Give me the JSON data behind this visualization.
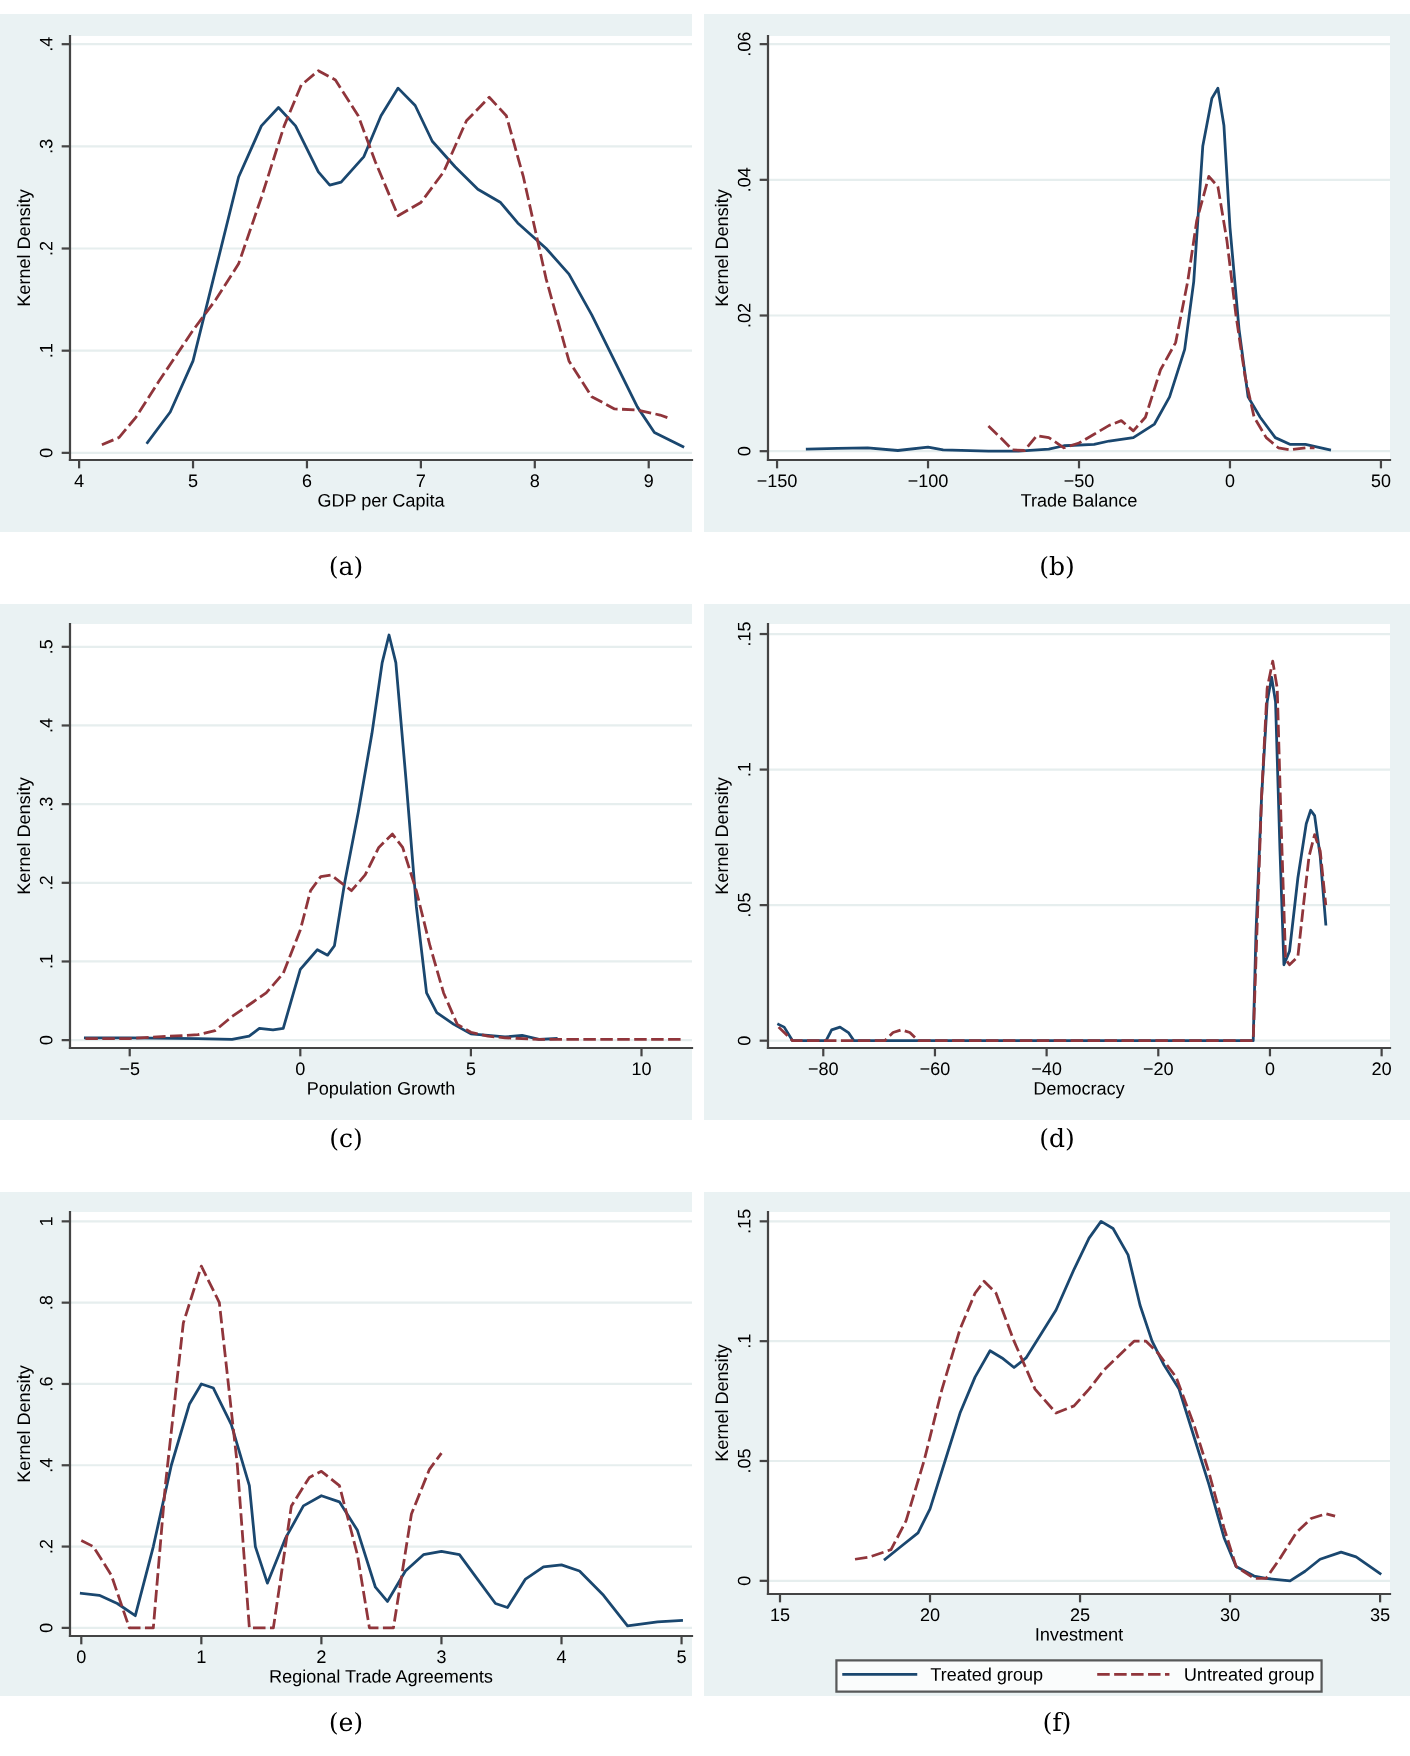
{
  "chart_data": [
    {
      "type": "line",
      "xlabel": "GDP per Capita",
      "ylabel": "Kernel Density",
      "annotations": [
        "(a)"
      ],
      "xlim": [
        3.92,
        9.38
      ],
      "ylim": [
        -0.007,
        0.408
      ],
      "xticks": [
        4,
        5,
        6,
        7,
        8,
        9
      ],
      "yticks": [
        0,
        {
          "value": 0.1,
          "label": ".1"
        },
        {
          "value": 0.2,
          "label": ".2"
        },
        {
          "value": 0.3,
          "label": ".3"
        },
        {
          "value": 0.4,
          "label": ".4"
        }
      ],
      "grid": "y",
      "series": [
        {
          "color": "#1a476f",
          "line_style": "solid",
          "x": [
            4.6,
            4.8,
            5.0,
            5.2,
            5.4,
            5.6,
            5.75,
            5.9,
            6.1,
            6.2,
            6.3,
            6.5,
            6.65,
            6.8,
            6.95,
            7.1,
            7.3,
            7.5,
            7.7,
            7.85,
            8.1,
            8.3,
            8.5,
            8.7,
            8.9,
            9.05,
            9.3
          ],
          "values": [
            0.01,
            0.04,
            0.09,
            0.18,
            0.27,
            0.32,
            0.338,
            0.32,
            0.275,
            0.262,
            0.265,
            0.29,
            0.33,
            0.357,
            0.34,
            0.305,
            0.28,
            0.258,
            0.245,
            0.225,
            0.2,
            0.175,
            0.135,
            0.09,
            0.045,
            0.02,
            0.006
          ]
        },
        {
          "color": "#90353b",
          "line_style": "dashed",
          "x": [
            4.2,
            4.35,
            4.5,
            4.7,
            5.0,
            5.2,
            5.4,
            5.6,
            5.8,
            5.95,
            6.1,
            6.25,
            6.45,
            6.6,
            6.8,
            7.0,
            7.2,
            7.4,
            7.6,
            7.75,
            7.9,
            8.1,
            8.3,
            8.5,
            8.7,
            8.9,
            9.1,
            9.2
          ],
          "values": [
            0.008,
            0.015,
            0.035,
            0.07,
            0.12,
            0.15,
            0.185,
            0.25,
            0.32,
            0.36,
            0.374,
            0.365,
            0.33,
            0.285,
            0.232,
            0.245,
            0.275,
            0.325,
            0.348,
            0.33,
            0.27,
            0.17,
            0.09,
            0.055,
            0.043,
            0.042,
            0.037,
            0.033
          ]
        }
      ]
    },
    {
      "type": "line",
      "xlabel": "Trade Balance",
      "ylabel": "Kernel Density",
      "annotations": [
        "(b)"
      ],
      "xlim": [
        -153,
        53
      ],
      "ylim": [
        -0.0013,
        0.0612
      ],
      "xticks": [
        {
          "value": -150,
          "label": "−150"
        },
        {
          "value": -100,
          "label": "−100"
        },
        {
          "value": -50,
          "label": "−50"
        },
        0,
        50
      ],
      "yticks": [
        0,
        {
          "value": 0.02,
          "label": ".02"
        },
        {
          "value": 0.04,
          "label": ".04"
        },
        {
          "value": 0.06,
          "label": ".06"
        }
      ],
      "grid": "y",
      "series": [
        {
          "color": "#1a476f",
          "line_style": "solid",
          "x": [
            -140,
            -130,
            -120,
            -110,
            -100,
            -95,
            -80,
            -70,
            -60,
            -55,
            -45,
            -40,
            -32,
            -25,
            -20,
            -15,
            -12,
            -9,
            -6,
            -4,
            -2,
            0,
            3,
            6,
            10,
            15,
            20,
            25,
            33
          ],
          "values": [
            0.0003,
            0.0004,
            0.0005,
            0.0001,
            0.0006,
            0.0002,
            0.0,
            0.0,
            0.0003,
            0.0008,
            0.001,
            0.0015,
            0.002,
            0.004,
            0.008,
            0.015,
            0.025,
            0.045,
            0.052,
            0.0535,
            0.048,
            0.033,
            0.018,
            0.008,
            0.005,
            0.002,
            0.001,
            0.001,
            0.0002
          ]
        },
        {
          "color": "#90353b",
          "line_style": "dashed",
          "x": [
            -80,
            -76,
            -72,
            -68,
            -64,
            -60,
            -55,
            -50,
            -45,
            -40,
            -36,
            -32,
            -28,
            -23,
            -18,
            -14,
            -11,
            -7,
            -4,
            -1,
            2,
            5,
            8,
            12,
            16,
            20,
            25,
            28
          ],
          "values": [
            0.0037,
            0.002,
            0.0002,
            0.0001,
            0.0023,
            0.002,
            0.0005,
            0.0012,
            0.0025,
            0.0038,
            0.0045,
            0.003,
            0.005,
            0.012,
            0.016,
            0.025,
            0.034,
            0.0405,
            0.039,
            0.031,
            0.02,
            0.011,
            0.005,
            0.002,
            0.0005,
            0.0002,
            0.0005,
            0.0005
          ]
        }
      ]
    },
    {
      "type": "line",
      "xlabel": "Population Growth",
      "ylabel": "Kernel Density",
      "annotations": [
        "(c)"
      ],
      "xlim": [
        -6.75,
        11.48
      ],
      "ylim": [
        -0.01,
        0.529
      ],
      "xticks": [
        {
          "value": -5,
          "label": "−5"
        },
        0,
        5,
        10
      ],
      "yticks": [
        0,
        {
          "value": 0.1,
          "label": ".1"
        },
        {
          "value": 0.2,
          "label": ".2"
        },
        {
          "value": 0.3,
          "label": ".3"
        },
        {
          "value": 0.4,
          "label": ".4"
        },
        {
          "value": 0.5,
          "label": ".5"
        }
      ],
      "grid": "y",
      "series": [
        {
          "color": "#1a476f",
          "line_style": "solid",
          "x": [
            -6.3,
            -5,
            -3,
            -2,
            -1.5,
            -1.2,
            -0.8,
            -0.5,
            -0.2,
            0,
            0.2,
            0.5,
            0.8,
            1.0,
            1.3,
            1.7,
            2.1,
            2.4,
            2.6,
            2.8,
            3.1,
            3.4,
            3.7,
            4.0,
            4.5,
            5,
            6,
            6.5,
            7,
            7.5
          ],
          "values": [
            0.003,
            0.003,
            0.002,
            0.001,
            0.005,
            0.015,
            0.013,
            0.015,
            0.06,
            0.09,
            0.1,
            0.115,
            0.108,
            0.12,
            0.2,
            0.29,
            0.39,
            0.48,
            0.515,
            0.48,
            0.33,
            0.17,
            0.06,
            0.035,
            0.02,
            0.008,
            0.004,
            0.006,
            0.001,
            0.002
          ]
        },
        {
          "color": "#90353b",
          "line_style": "dashed",
          "x": [
            -6.3,
            -5,
            -3,
            -2.5,
            -2,
            -1.5,
            -1,
            -0.5,
            0,
            0.3,
            0.6,
            0.9,
            1.2,
            1.5,
            1.9,
            2.3,
            2.7,
            3.0,
            3.4,
            3.8,
            4.2,
            4.6,
            5,
            5.5,
            6,
            7,
            8,
            9,
            11.24
          ],
          "values": [
            0.002,
            0.002,
            0.007,
            0.012,
            0.03,
            0.045,
            0.06,
            0.085,
            0.14,
            0.19,
            0.208,
            0.21,
            0.2,
            0.19,
            0.21,
            0.245,
            0.262,
            0.245,
            0.19,
            0.12,
            0.06,
            0.02,
            0.01,
            0.005,
            0.003,
            0.001,
            0.001,
            0.001,
            0.001
          ]
        }
      ]
    },
    {
      "type": "line",
      "xlabel": "Democracy",
      "ylabel": "Kernel Density",
      "annotations": [
        "(d)"
      ],
      "xlim": [
        -89.9,
        21.5
      ],
      "ylim": [
        -0.0027,
        0.1537
      ],
      "xticks": [
        {
          "value": -80,
          "label": "−80"
        },
        {
          "value": -60,
          "label": "−60"
        },
        {
          "value": -40,
          "label": "−40"
        },
        {
          "value": -20,
          "label": "−20"
        },
        0,
        20
      ],
      "yticks": [
        0,
        {
          "value": 0.05,
          "label": ".05"
        },
        {
          "value": 0.1,
          "label": ".1"
        },
        {
          "value": 0.15,
          "label": ".15"
        }
      ],
      "grid": "y",
      "series": [
        {
          "color": "#1a476f",
          "line_style": "solid",
          "x": [
            -88,
            -87,
            -85.5,
            -80,
            -79.5,
            -78.5,
            -77,
            -75.5,
            -74.5,
            -60,
            -40,
            -20,
            -3,
            -2.5,
            -1.5,
            -0.5,
            0.3,
            1.0,
            1.8,
            2.5,
            3.5,
            5,
            6.5,
            7.3,
            8,
            9,
            10
          ],
          "values": [
            0.006,
            0.005,
            0,
            0,
            0,
            0.004,
            0.005,
            0.003,
            0,
            0,
            0,
            0,
            0,
            0.04,
            0.09,
            0.125,
            0.134,
            0.125,
            0.07,
            0.028,
            0.033,
            0.06,
            0.08,
            0.085,
            0.083,
            0.068,
            0.043
          ]
        },
        {
          "color": "#90353b",
          "line_style": "dashed",
          "x": [
            -88,
            -87,
            -85.5,
            -69,
            -67.5,
            -66,
            -64.5,
            -63,
            -40,
            -3,
            -2.5,
            -1.5,
            -0.5,
            0.5,
            1.3,
            2,
            2.8,
            3.5,
            5,
            6,
            7,
            8,
            9,
            10
          ],
          "values": [
            0.005,
            0.003,
            0,
            0,
            0.003,
            0.004,
            0.003,
            0,
            0,
            0,
            0.03,
            0.09,
            0.13,
            0.14,
            0.13,
            0.08,
            0.03,
            0.028,
            0.031,
            0.05,
            0.068,
            0.076,
            0.07,
            0.05
          ]
        }
      ]
    },
    {
      "type": "line",
      "xlabel": "Regional Trade Agreements",
      "ylabel": "Kernel Density",
      "annotations": [
        "(e)"
      ],
      "xlim": [
        -0.094,
        5.087
      ],
      "ylim": [
        -0.02,
        1.023
      ],
      "xticks": [
        0,
        1,
        2,
        3,
        4,
        5
      ],
      "yticks": [
        0,
        {
          "value": 0.2,
          "label": ".2"
        },
        {
          "value": 0.4,
          "label": ".4"
        },
        {
          "value": 0.6,
          "label": ".6"
        },
        {
          "value": 0.8,
          "label": ".8"
        },
        1
      ],
      "grid": "y",
      "series": [
        {
          "color": "#1a476f",
          "line_style": "solid",
          "x": [
            0,
            0.15,
            0.3,
            0.45,
            0.6,
            0.75,
            0.9,
            1.0,
            1.1,
            1.25,
            1.4,
            1.45,
            1.55,
            1.7,
            1.85,
            2.0,
            2.15,
            2.3,
            2.45,
            2.55,
            2.7,
            2.85,
            3.0,
            3.15,
            3.3,
            3.45,
            3.55,
            3.7,
            3.85,
            4.0,
            4.15,
            4.35,
            4.55,
            4.8,
            5.0
          ],
          "values": [
            0.085,
            0.08,
            0.06,
            0.03,
            0.2,
            0.4,
            0.55,
            0.6,
            0.59,
            0.5,
            0.35,
            0.2,
            0.11,
            0.22,
            0.3,
            0.325,
            0.31,
            0.24,
            0.1,
            0.065,
            0.14,
            0.18,
            0.188,
            0.18,
            0.12,
            0.06,
            0.05,
            0.12,
            0.15,
            0.155,
            0.14,
            0.08,
            0.005,
            0.015,
            0.018
          ]
        },
        {
          "color": "#90353b",
          "line_style": "dashed",
          "x": [
            0,
            0.1,
            0.25,
            0.4,
            0.6,
            0.7,
            0.85,
            1.0,
            1.15,
            1.3,
            1.4,
            1.6,
            1.75,
            1.9,
            2.0,
            2.15,
            2.3,
            2.4,
            2.6,
            2.75,
            2.9,
            3.0
          ],
          "values": [
            0.215,
            0.2,
            0.13,
            0.0,
            0.0,
            0.35,
            0.75,
            0.89,
            0.8,
            0.4,
            0.0,
            0.0,
            0.3,
            0.37,
            0.385,
            0.35,
            0.18,
            0.0,
            0.0,
            0.28,
            0.39,
            0.43
          ]
        }
      ]
    },
    {
      "type": "line",
      "xlabel": "Investment",
      "ylabel": "Kernel Density",
      "annotations": [
        "(f)"
      ],
      "xlim": [
        14.6,
        35.33
      ],
      "ylim": [
        -0.0055,
        0.1539
      ],
      "xticks": [
        15,
        20,
        25,
        30,
        35
      ],
      "yticks": [
        0,
        {
          "value": 0.05,
          "label": ".05"
        },
        {
          "value": 0.1,
          "label": ".1"
        },
        {
          "value": 0.15,
          "label": ".15"
        }
      ],
      "grid": "y",
      "legend": "bottom",
      "series": [
        {
          "name": "Treated group",
          "color": "#1a476f",
          "line_style": "solid",
          "x": [
            18.5,
            19,
            19.6,
            20,
            20.5,
            21,
            21.5,
            22,
            22.4,
            22.8,
            23.2,
            23.7,
            24.2,
            24.8,
            25.3,
            25.7,
            26.1,
            26.6,
            27,
            27.4,
            27.8,
            28.3,
            28.8,
            29.3,
            29.8,
            30.2,
            30.8,
            31.2,
            32,
            32.5,
            33,
            33.7,
            34.2,
            35
          ],
          "values": [
            0.009,
            0.014,
            0.02,
            0.03,
            0.05,
            0.07,
            0.085,
            0.096,
            0.093,
            0.089,
            0.093,
            0.103,
            0.113,
            0.13,
            0.143,
            0.15,
            0.147,
            0.136,
            0.115,
            0.1,
            0.09,
            0.08,
            0.06,
            0.04,
            0.018,
            0.006,
            0.002,
            0.001,
            0.0,
            0.004,
            0.009,
            0.012,
            0.01,
            0.003
          ]
        },
        {
          "name": "Untreated group",
          "color": "#90353b",
          "line_style": "dashed",
          "x": [
            17.5,
            18,
            18.7,
            19.2,
            19.8,
            20.4,
            21,
            21.5,
            21.8,
            22.2,
            22.8,
            23.5,
            24.2,
            24.8,
            25.3,
            25.8,
            26.3,
            26.8,
            27.2,
            27.6,
            28.2,
            28.8,
            29.3,
            29.8,
            30.2,
            30.8,
            31.2,
            31.7,
            32.2,
            32.7,
            33.2,
            33.5
          ],
          "values": [
            0.009,
            0.01,
            0.013,
            0.025,
            0.05,
            0.08,
            0.105,
            0.12,
            0.125,
            0.12,
            0.1,
            0.08,
            0.07,
            0.073,
            0.08,
            0.088,
            0.094,
            0.1,
            0.1,
            0.095,
            0.085,
            0.065,
            0.045,
            0.022,
            0.006,
            0.001,
            0.001,
            0.01,
            0.02,
            0.026,
            0.028,
            0.027
          ]
        }
      ]
    }
  ]
}
